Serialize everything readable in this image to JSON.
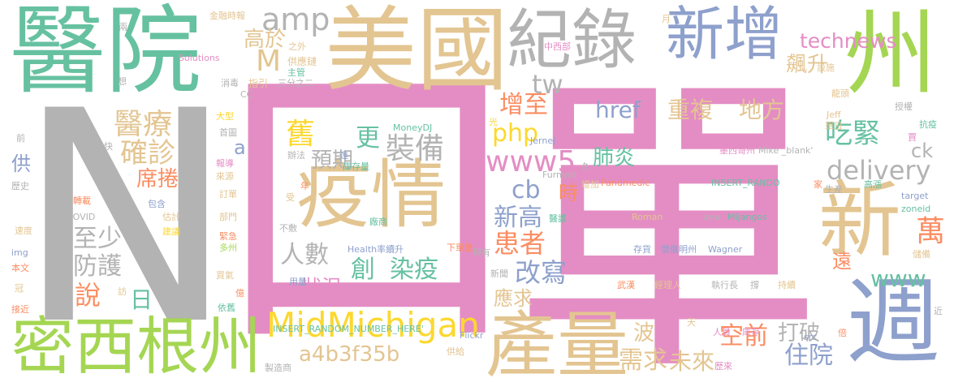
{
  "colors": {
    "pink": "#e48dc4",
    "gray": "#b3b3b3",
    "tan": "#e3c591",
    "teal": "#66c1a1",
    "blue": "#8ea0cc",
    "green": "#a5d653",
    "yellow": "#fcd82f",
    "orange": "#fb8d62"
  },
  "words": [
    {
      "text": "單",
      "color": "pink"
    },
    {
      "text": "N",
      "color": "gray"
    },
    {
      "text": "口",
      "color": "pink"
    },
    {
      "text": "醫院",
      "color": "teal"
    },
    {
      "text": "美國",
      "color": "tan"
    },
    {
      "text": "紀錄",
      "color": "gray"
    },
    {
      "text": "新增",
      "color": "blue"
    },
    {
      "text": "州",
      "color": "green"
    },
    {
      "text": "新",
      "color": "tan"
    },
    {
      "text": "週",
      "color": "blue"
    },
    {
      "text": "疫情",
      "color": "tan"
    },
    {
      "text": "密西根州",
      "color": "green"
    },
    {
      "text": "產量",
      "color": "tan"
    },
    {
      "text": "MidMichigan",
      "color": "yellow"
    },
    {
      "text": "technews",
      "color": "pink"
    },
    {
      "text": "飆升",
      "color": "tan"
    },
    {
      "text": "amp",
      "color": "gray"
    },
    {
      "text": "M",
      "color": "tan"
    },
    {
      "text": "高於",
      "color": "tan"
    },
    {
      "text": "tw",
      "color": "gray"
    },
    {
      "text": "醫療",
      "color": "tan"
    },
    {
      "text": "確診",
      "color": "tan"
    },
    {
      "text": "舊",
      "color": "yellow"
    },
    {
      "text": "更",
      "color": "teal"
    },
    {
      "text": "裝備",
      "color": "gray"
    },
    {
      "text": "預期",
      "color": "gray"
    },
    {
      "text": "增至",
      "color": "orange"
    },
    {
      "text": "php",
      "color": "yellow"
    },
    {
      "text": "href",
      "color": "blue"
    },
    {
      "text": "重複",
      "color": "tan"
    },
    {
      "text": "地方",
      "color": "tan"
    },
    {
      "text": "吃緊",
      "color": "teal"
    },
    {
      "text": "ck",
      "color": "gray"
    },
    {
      "text": "delivery",
      "color": "gray"
    },
    {
      "text": "www5",
      "color": "pink"
    },
    {
      "text": "肺炎",
      "color": "teal"
    },
    {
      "text": "cb",
      "color": "blue"
    },
    {
      "text": "時",
      "color": "orange"
    },
    {
      "text": "席捲",
      "color": "orange"
    },
    {
      "text": "a",
      "color": "blue"
    },
    {
      "text": "供",
      "color": "blue"
    },
    {
      "text": "至少",
      "color": "gray"
    },
    {
      "text": "防護",
      "color": "gray"
    },
    {
      "text": "人數",
      "color": "gray"
    },
    {
      "text": "新高",
      "color": "blue"
    },
    {
      "text": "患者",
      "color": "orange"
    },
    {
      "text": "萬",
      "color": "orange"
    },
    {
      "text": "www",
      "color": "teal"
    },
    {
      "text": "創",
      "color": "teal"
    },
    {
      "text": "染疫",
      "color": "teal"
    },
    {
      "text": "改寫",
      "color": "blue"
    },
    {
      "text": "遠",
      "color": "orange"
    },
    {
      "text": "說",
      "color": "orange"
    },
    {
      "text": "日",
      "color": "teal"
    },
    {
      "text": "狀況",
      "color": "pink"
    },
    {
      "text": "應求",
      "color": "tan"
    },
    {
      "text": "波",
      "color": "tan"
    },
    {
      "text": "打破",
      "color": "gray"
    },
    {
      "text": "空前",
      "color": "orange"
    },
    {
      "text": "住院",
      "color": "blue"
    },
    {
      "text": "需求",
      "color": "tan"
    },
    {
      "text": "未來",
      "color": "tan"
    },
    {
      "text": "a4b3f35b",
      "color": "tan"
    },
    {
      "text": "金融時報",
      "color": "tan"
    },
    {
      "text": "兩",
      "color": "gray"
    },
    {
      "text": "Solutions",
      "color": "pink"
    },
    {
      "text": "之外",
      "color": "tan"
    },
    {
      "text": "供應鏈",
      "color": "tan"
    },
    {
      "text": "主管",
      "color": "teal"
    },
    {
      "text": "指引",
      "color": "tan"
    },
    {
      "text": "三分之二",
      "color": "gray"
    },
    {
      "text": "消毒",
      "color": "gray"
    },
    {
      "text": "CC",
      "color": "gray"
    },
    {
      "text": "想",
      "color": "gray"
    },
    {
      "text": "前",
      "color": "gray"
    },
    {
      "text": "大型",
      "color": "yellow"
    },
    {
      "text": "首圖",
      "color": "gray"
    },
    {
      "text": "快",
      "color": "gray"
    },
    {
      "text": "歷史",
      "color": "gray"
    },
    {
      "text": "報導",
      "color": "pink"
    },
    {
      "text": "來源",
      "color": "tan"
    },
    {
      "text": "轉載",
      "color": "orange"
    },
    {
      "text": "訂單",
      "color": "tan"
    },
    {
      "text": "COVID",
      "color": "gray"
    },
    {
      "text": "包含",
      "color": "blue"
    },
    {
      "text": "估計",
      "color": "tan"
    },
    {
      "text": "部門",
      "color": "tan"
    },
    {
      "text": "速度",
      "color": "tan"
    },
    {
      "text": "建議",
      "color": "yellow"
    },
    {
      "text": "緊急",
      "color": "orange"
    },
    {
      "text": "多州",
      "color": "green"
    },
    {
      "text": "img",
      "color": "blue"
    },
    {
      "text": "本文",
      "color": "orange"
    },
    {
      "text": "冠",
      "color": "tan"
    },
    {
      "text": "接近",
      "color": "orange"
    },
    {
      "text": "買氣",
      "color": "tan"
    },
    {
      "text": "訪",
      "color": "tan"
    },
    {
      "text": "億",
      "color": "orange"
    },
    {
      "text": "依舊",
      "color": "teal"
    },
    {
      "text": "辦法",
      "color": "gray"
    },
    {
      "text": "達",
      "color": "blue"
    },
    {
      "text": "年",
      "color": "orange"
    },
    {
      "text": "受",
      "color": "tan"
    },
    {
      "text": "不敷",
      "color": "gray"
    },
    {
      "text": "用量",
      "color": "blue"
    },
    {
      "text": "庫存量",
      "color": "teal"
    },
    {
      "text": "廠商",
      "color": "teal"
    },
    {
      "text": "Health率續升",
      "color": "blue"
    },
    {
      "text": "下單量",
      "color": "orange"
    },
    {
      "text": "現有",
      "color": "gray"
    },
    {
      "text": "新聞",
      "color": "gray"
    },
    {
      "text": "MoneyDJ",
      "color": "teal"
    },
    {
      "text": "Jernej",
      "color": "blue"
    },
    {
      "text": "Furman",
      "color": "gray"
    },
    {
      "text": "光",
      "color": "yellow"
    },
    {
      "text": "增加",
      "color": "tan"
    },
    {
      "text": "醫護",
      "color": "teal"
    },
    {
      "text": "久",
      "color": "gray"
    },
    {
      "text": "Pandmedic",
      "color": "orange"
    },
    {
      "text": "中西部",
      "color": "pink"
    },
    {
      "text": "月",
      "color": "tan"
    },
    {
      "text": "龍頭",
      "color": "tan"
    },
    {
      "text": "設施",
      "color": "tan"
    },
    {
      "text": "授權",
      "color": "gray"
    },
    {
      "text": "Jeff",
      "color": "tan"
    },
    {
      "text": "單日",
      "color": "tan"
    },
    {
      "text": "抗疫",
      "color": "teal"
    },
    {
      "text": "賈",
      "color": "pink"
    },
    {
      "text": "墨西哥州",
      "color": "pink"
    },
    {
      "text": "Mike _blank'",
      "color": "gray"
    },
    {
      "text": "INSERT_RANDO",
      "color": "teal"
    },
    {
      "text": "家",
      "color": "orange"
    },
    {
      "text": "生產",
      "color": "gray"
    },
    {
      "text": "高漲",
      "color": "teal"
    },
    {
      "text": "target",
      "color": "blue"
    },
    {
      "text": "zoneid",
      "color": "teal"
    },
    {
      "text": "儲備",
      "color": "tan"
    },
    {
      "text": "Roman",
      "color": "tan"
    },
    {
      "text": "avw",
      "color": "gray"
    },
    {
      "text": "Mijangos",
      "color": "teal"
    },
    {
      "text": "存貨",
      "color": "blue"
    },
    {
      "text": "懷俄明州",
      "color": "blue"
    },
    {
      "text": "Wagner",
      "color": "blue"
    },
    {
      "text": "武漢",
      "color": "orange"
    },
    {
      "text": "經理人",
      "color": "tan"
    },
    {
      "text": "執行長",
      "color": "gray"
    },
    {
      "text": "撐",
      "color": "gray"
    },
    {
      "text": "持續",
      "color": "tan"
    },
    {
      "text": "倍",
      "color": "orange"
    },
    {
      "text": "近",
      "color": "gray"
    },
    {
      "text": "INSERT_RANDOM_NUMBER_HERE'",
      "color": "teal"
    },
    {
      "text": "Flickr",
      "color": "blue"
    },
    {
      "text": "天",
      "color": "tan"
    },
    {
      "text": "src",
      "color": "blue"
    },
    {
      "text": "人員",
      "color": "pink"
    },
    {
      "text": "庫存",
      "color": "pink"
    },
    {
      "text": "製造商",
      "color": "gray"
    },
    {
      "text": "供給",
      "color": "tan"
    },
    {
      "text": "歷來",
      "color": "pink"
    }
  ]
}
